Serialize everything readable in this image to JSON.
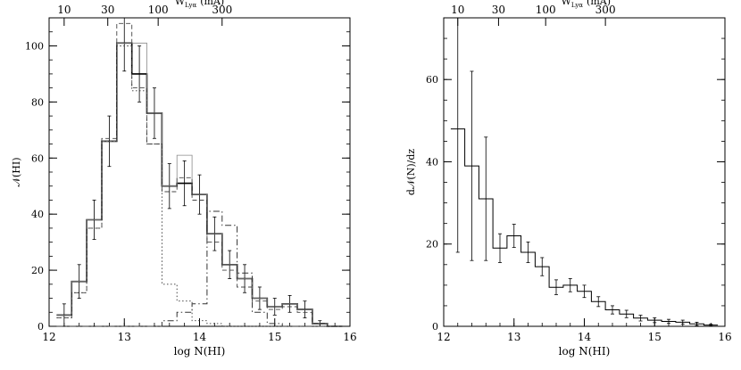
{
  "chart_data": [
    {
      "type": "line",
      "xlabel": "log N(HI)",
      "ylabel": "𝒩(HI)",
      "xlim": [
        12,
        16
      ],
      "ylim": [
        0,
        110
      ],
      "xticks": [
        12,
        13,
        14,
        15,
        16
      ],
      "yticks": [
        0,
        20,
        40,
        60,
        80,
        100
      ],
      "top_axis": {
        "label_main": "W",
        "label_sub": "Lyα",
        "label_unit": "(mÅ)",
        "ticks": [
          {
            "label": "10",
            "x": 12.2
          },
          {
            "label": "30",
            "x": 12.78
          },
          {
            "label": "100",
            "x": 13.45
          },
          {
            "label": "300",
            "x": 14.3
          }
        ]
      },
      "bin_edges": [
        12.1,
        12.3,
        12.5,
        12.7,
        12.9,
        13.1,
        13.3,
        13.5,
        13.7,
        13.9,
        14.1,
        14.3,
        14.5,
        14.7,
        14.9,
        15.1,
        15.3,
        15.5,
        15.7,
        15.9
      ],
      "series": [
        {
          "style": "solid-thick",
          "values": [
            4,
            16,
            38,
            66,
            101,
            90,
            76,
            50,
            51,
            47,
            33,
            22,
            17,
            10,
            7,
            8,
            6,
            1,
            0
          ],
          "errors": [
            4,
            6,
            7,
            9,
            10,
            10,
            9,
            8,
            8,
            7,
            6,
            5,
            5,
            4,
            3,
            3,
            3,
            1,
            0
          ]
        },
        {
          "style": "solid-thin-gray",
          "values": [
            4,
            16,
            38,
            66,
            101,
            101,
            76,
            50,
            61,
            47,
            33,
            22,
            17,
            10,
            7,
            8,
            6,
            1,
            0
          ]
        },
        {
          "style": "dashed",
          "values": [
            3,
            12,
            35,
            67,
            108,
            85,
            65,
            48,
            53,
            45,
            30,
            20,
            14,
            9,
            6,
            7,
            5,
            1,
            0
          ]
        },
        {
          "style": "dotted",
          "values": [
            3,
            12,
            35,
            66,
            100,
            84,
            65,
            15,
            9,
            2,
            1,
            0,
            0,
            0,
            0,
            0,
            0,
            0,
            0
          ]
        },
        {
          "style": "dash-dot",
          "values": [
            0,
            0,
            0,
            0,
            0,
            0,
            0,
            2,
            5,
            8,
            41,
            36,
            19,
            5,
            1,
            0,
            0,
            0,
            0
          ]
        }
      ]
    },
    {
      "type": "line",
      "xlabel": "log N(HI)",
      "ylabel": "d𝒩(N)/dz",
      "xlim": [
        12,
        16
      ],
      "ylim": [
        0,
        75
      ],
      "xticks": [
        12,
        13,
        14,
        15,
        16
      ],
      "yticks": [
        0,
        20,
        40,
        60
      ],
      "top_axis": {
        "label_main": "W",
        "label_sub": "Lyα",
        "label_unit": "(mÅ)",
        "ticks": [
          {
            "label": "10",
            "x": 12.2
          },
          {
            "label": "30",
            "x": 12.78
          },
          {
            "label": "100",
            "x": 13.45
          },
          {
            "label": "300",
            "x": 14.3
          }
        ]
      },
      "bin_edges": [
        12.1,
        12.3,
        12.5,
        12.7,
        12.9,
        13.1,
        13.3,
        13.5,
        13.7,
        13.9,
        14.1,
        14.3,
        14.5,
        14.7,
        14.9,
        15.1,
        15.3,
        15.5,
        15.7,
        15.9
      ],
      "series": [
        {
          "style": "solid-thin",
          "values": [
            48,
            39,
            31,
            19,
            22,
            18,
            14.5,
            9.5,
            10,
            8.5,
            6,
            4,
            3,
            2,
            1.5,
            1.2,
            1,
            0.6,
            0.3
          ],
          "errors": [
            30,
            23,
            15,
            3.5,
            2.8,
            2.5,
            2.2,
            1.8,
            1.6,
            1.5,
            1.2,
            1,
            0.9,
            0.7,
            0.6,
            0.5,
            0.5,
            0.4,
            0.2
          ]
        }
      ]
    }
  ]
}
